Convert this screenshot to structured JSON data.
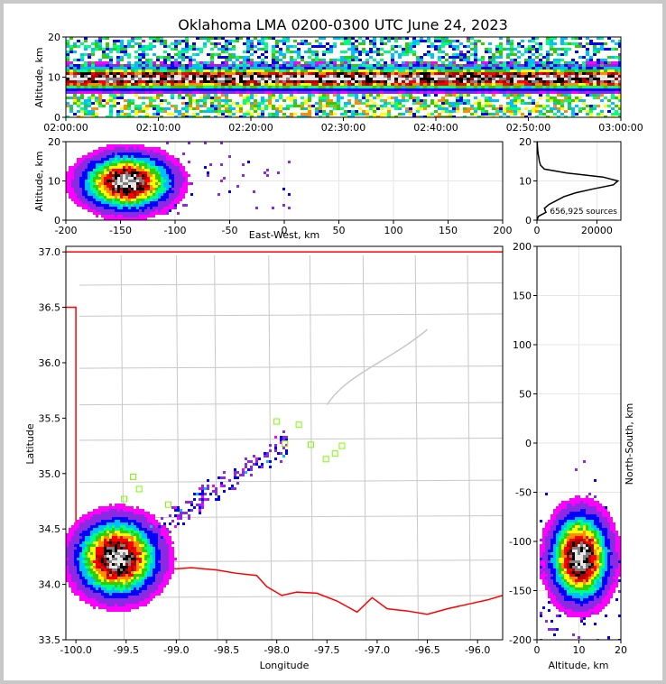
{
  "title": "Oklahoma LMA 0200-0300 UTC June 24, 2023",
  "colors": {
    "density_scale": [
      "#ffffff",
      "#ff00ff",
      "#8a2be2",
      "#0000ff",
      "#00bfff",
      "#00ff80",
      "#33cc00",
      "#ffff00",
      "#ff8c00",
      "#ff0000",
      "#b00000",
      "#000000",
      "#808080",
      "#e8e8e8"
    ],
    "state_border": "#ff0000",
    "county_lines": "#c8c8c8",
    "station_marker": "#7cfc00",
    "grid": "#e6e6e6"
  },
  "chart_data": [
    {
      "panel": "time-height",
      "type": "heatmap",
      "xlabel": "",
      "ylabel": "Altitude, km",
      "x_ticks": [
        "02:00:00",
        "02:10:00",
        "02:20:00",
        "02:30:00",
        "02:40:00",
        "02:50:00",
        "03:00:00"
      ],
      "y_ticks": [
        "0",
        "10",
        "20"
      ],
      "ylim": [
        0,
        20
      ],
      "core_altitude_km": 10
    },
    {
      "panel": "east-west-altitude",
      "type": "heatmap",
      "xlabel": "East-West, km",
      "ylabel": "Altitude, km",
      "x_ticks": [
        "-200",
        "-150",
        "-100",
        "-50",
        "0",
        "50",
        "100",
        "150",
        "200"
      ],
      "y_ticks": [
        "0",
        "10",
        "20"
      ],
      "xlim": [
        -200,
        200
      ],
      "ylim": [
        0,
        20
      ],
      "core": {
        "x_km": -145,
        "alt_km": 10
      },
      "grid": true
    },
    {
      "panel": "altitude-histogram",
      "type": "line",
      "x_ticks": [
        "0",
        "20000"
      ],
      "y_ticks": [
        "0",
        "10",
        "20"
      ],
      "xlim": [
        0,
        28000
      ],
      "ylim": [
        0,
        20
      ],
      "annotation": "656,925 sources",
      "profile": {
        "altitude": [
          0,
          1,
          2,
          3,
          4,
          5,
          6,
          7,
          8,
          9,
          10,
          11,
          12,
          13,
          14,
          15,
          16,
          17,
          18,
          19,
          20
        ],
        "counts": [
          0,
          500,
          3000,
          2500,
          4000,
          6500,
          9000,
          13000,
          19000,
          25500,
          27000,
          22000,
          10000,
          2500,
          1200,
          800,
          600,
          400,
          250,
          150,
          100
        ]
      }
    },
    {
      "panel": "plan-view",
      "type": "heatmap",
      "xlabel": "Longitude",
      "ylabel": "Latitude",
      "x_ticks": [
        "-100.0",
        "-99.5",
        "-99.0",
        "-98.5",
        "-98.0",
        "-97.5",
        "-97.0",
        "-96.5",
        "-96.0"
      ],
      "y_ticks": [
        "33.5",
        "34.0",
        "34.5",
        "35.0",
        "35.5",
        "36.0",
        "36.5",
        "37.0"
      ],
      "xlim": [
        -100.1,
        -95.75
      ],
      "ylim": [
        33.5,
        37.05
      ],
      "core": {
        "lon": -99.6,
        "lat": 34.25
      },
      "stations": [
        {
          "lon": -98.0,
          "lat": 35.47
        },
        {
          "lon": -97.78,
          "lat": 35.44
        },
        {
          "lon": -97.92,
          "lat": 35.27
        },
        {
          "lon": -97.66,
          "lat": 35.26
        },
        {
          "lon": -97.35,
          "lat": 35.25
        },
        {
          "lon": -97.42,
          "lat": 35.18
        },
        {
          "lon": -97.51,
          "lat": 35.13
        },
        {
          "lon": -99.43,
          "lat": 34.97
        },
        {
          "lon": -99.37,
          "lat": 34.86
        },
        {
          "lon": -99.52,
          "lat": 34.77
        },
        {
          "lon": -99.08,
          "lat": 34.72
        }
      ]
    },
    {
      "panel": "altitude-north-south",
      "type": "heatmap",
      "xlabel": "Altitude, km",
      "ylabel": "North-South, km",
      "x_ticks": [
        "0",
        "10",
        "20"
      ],
      "y_ticks": [
        "200",
        "150",
        "100",
        "50",
        "0",
        "-50",
        "-100",
        "-150",
        "-200"
      ],
      "xlim": [
        0,
        20
      ],
      "ylim": [
        -200,
        200
      ],
      "core": {
        "alt_km": 10,
        "y_km": -115
      },
      "grid": true
    }
  ]
}
